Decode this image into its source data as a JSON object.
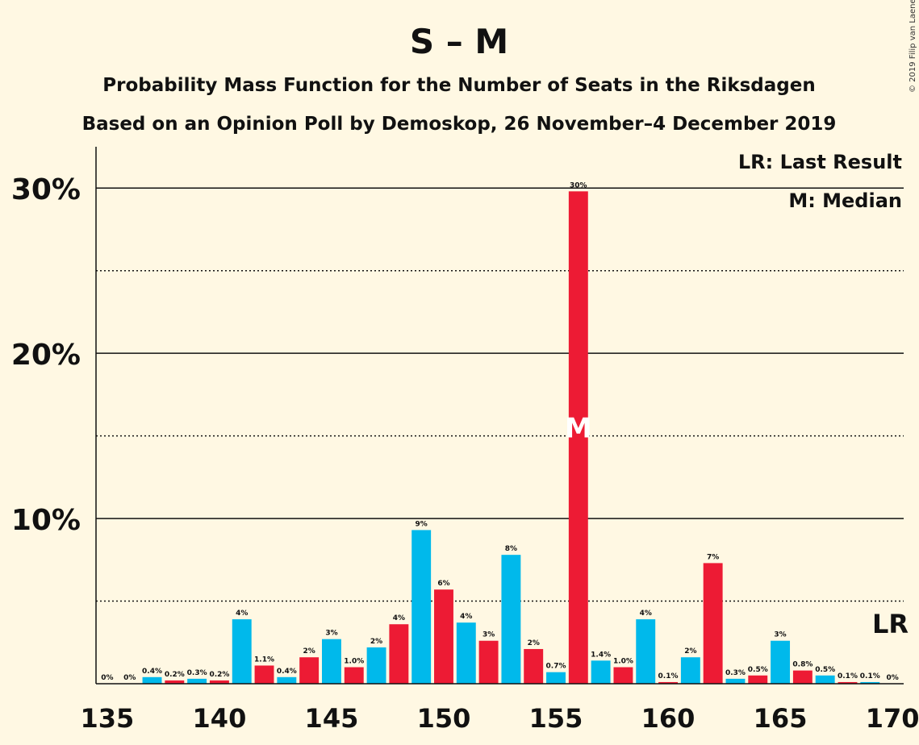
{
  "chart_data": {
    "type": "bar",
    "title": "S – M",
    "subtitle_1": "Probability Mass Function for the Number of Seats in the Riksdagen",
    "subtitle_2": "Based on an Opinion Poll by Demoskop, 26 November–4 December 2019",
    "copyright": "© 2019 Filip van Laenen",
    "legend": {
      "lr": "LR: Last Result",
      "median": "M: Median"
    },
    "last_result_label": "LR",
    "median_label": "M",
    "median_seat": 156,
    "last_result_seat": 170,
    "xlim": [
      135,
      170
    ],
    "ylim": [
      0,
      32.5
    ],
    "x_ticks": [
      "135",
      "140",
      "145",
      "150",
      "155",
      "160",
      "165",
      "170"
    ],
    "y_ticks": [
      {
        "value": 10,
        "label": "10%"
      },
      {
        "value": 20,
        "label": "20%"
      },
      {
        "value": 30,
        "label": "30%"
      }
    ],
    "gridlines_major": [
      10,
      20,
      30
    ],
    "gridlines_minor": [
      5,
      15,
      25
    ],
    "colors": {
      "blue": "#00b9eb",
      "red": "#ed1b34",
      "background": "#fff8e3",
      "text": "#111111"
    },
    "bars": [
      {
        "seats": 135,
        "value": 0,
        "label": "0%",
        "color": "blue"
      },
      {
        "seats": 136,
        "value": 0,
        "label": "0%",
        "color": "red"
      },
      {
        "seats": 137,
        "value": 0.4,
        "label": "0.4%",
        "color": "blue"
      },
      {
        "seats": 138,
        "value": 0.2,
        "label": "0.2%",
        "color": "red"
      },
      {
        "seats": 139,
        "value": 0.3,
        "label": "0.3%",
        "color": "blue"
      },
      {
        "seats": 140,
        "value": 0.2,
        "label": "0.2%",
        "color": "red"
      },
      {
        "seats": 141,
        "value": 3.9,
        "label": "4%",
        "color": "blue"
      },
      {
        "seats": 142,
        "value": 1.1,
        "label": "1.1%",
        "color": "red"
      },
      {
        "seats": 143,
        "value": 0.4,
        "label": "0.4%",
        "color": "blue"
      },
      {
        "seats": 144,
        "value": 1.6,
        "label": "2%",
        "color": "red"
      },
      {
        "seats": 145,
        "value": 2.7,
        "label": "3%",
        "color": "blue"
      },
      {
        "seats": 146,
        "value": 1.0,
        "label": "1.0%",
        "color": "red"
      },
      {
        "seats": 147,
        "value": 2.2,
        "label": "2%",
        "color": "blue"
      },
      {
        "seats": 148,
        "value": 3.6,
        "label": "4%",
        "color": "red"
      },
      {
        "seats": 149,
        "value": 9.3,
        "label": "9%",
        "color": "blue"
      },
      {
        "seats": 150,
        "value": 5.7,
        "label": "6%",
        "color": "red"
      },
      {
        "seats": 151,
        "value": 3.7,
        "label": "4%",
        "color": "blue"
      },
      {
        "seats": 152,
        "value": 2.6,
        "label": "3%",
        "color": "red"
      },
      {
        "seats": 153,
        "value": 7.8,
        "label": "8%",
        "color": "blue"
      },
      {
        "seats": 154,
        "value": 2.1,
        "label": "2%",
        "color": "red"
      },
      {
        "seats": 155,
        "value": 0.7,
        "label": "0.7%",
        "color": "blue"
      },
      {
        "seats": 156,
        "value": 29.8,
        "label": "30%",
        "color": "red"
      },
      {
        "seats": 157,
        "value": 1.4,
        "label": "1.4%",
        "color": "blue"
      },
      {
        "seats": 158,
        "value": 1.0,
        "label": "1.0%",
        "color": "red"
      },
      {
        "seats": 159,
        "value": 3.9,
        "label": "4%",
        "color": "blue"
      },
      {
        "seats": 160,
        "value": 0.1,
        "label": "0.1%",
        "color": "red"
      },
      {
        "seats": 161,
        "value": 1.6,
        "label": "2%",
        "color": "blue"
      },
      {
        "seats": 162,
        "value": 7.3,
        "label": "7%",
        "color": "red"
      },
      {
        "seats": 163,
        "value": 0.3,
        "label": "0.3%",
        "color": "blue"
      },
      {
        "seats": 164,
        "value": 0.5,
        "label": "0.5%",
        "color": "red"
      },
      {
        "seats": 165,
        "value": 2.6,
        "label": "3%",
        "color": "blue"
      },
      {
        "seats": 166,
        "value": 0.8,
        "label": "0.8%",
        "color": "red"
      },
      {
        "seats": 167,
        "value": 0.5,
        "label": "0.5%",
        "color": "blue"
      },
      {
        "seats": 168,
        "value": 0.1,
        "label": "0.1%",
        "color": "red"
      },
      {
        "seats": 169,
        "value": 0.1,
        "label": "0.1%",
        "color": "blue"
      },
      {
        "seats": 170,
        "value": 0,
        "label": "0%",
        "color": "red"
      }
    ]
  }
}
